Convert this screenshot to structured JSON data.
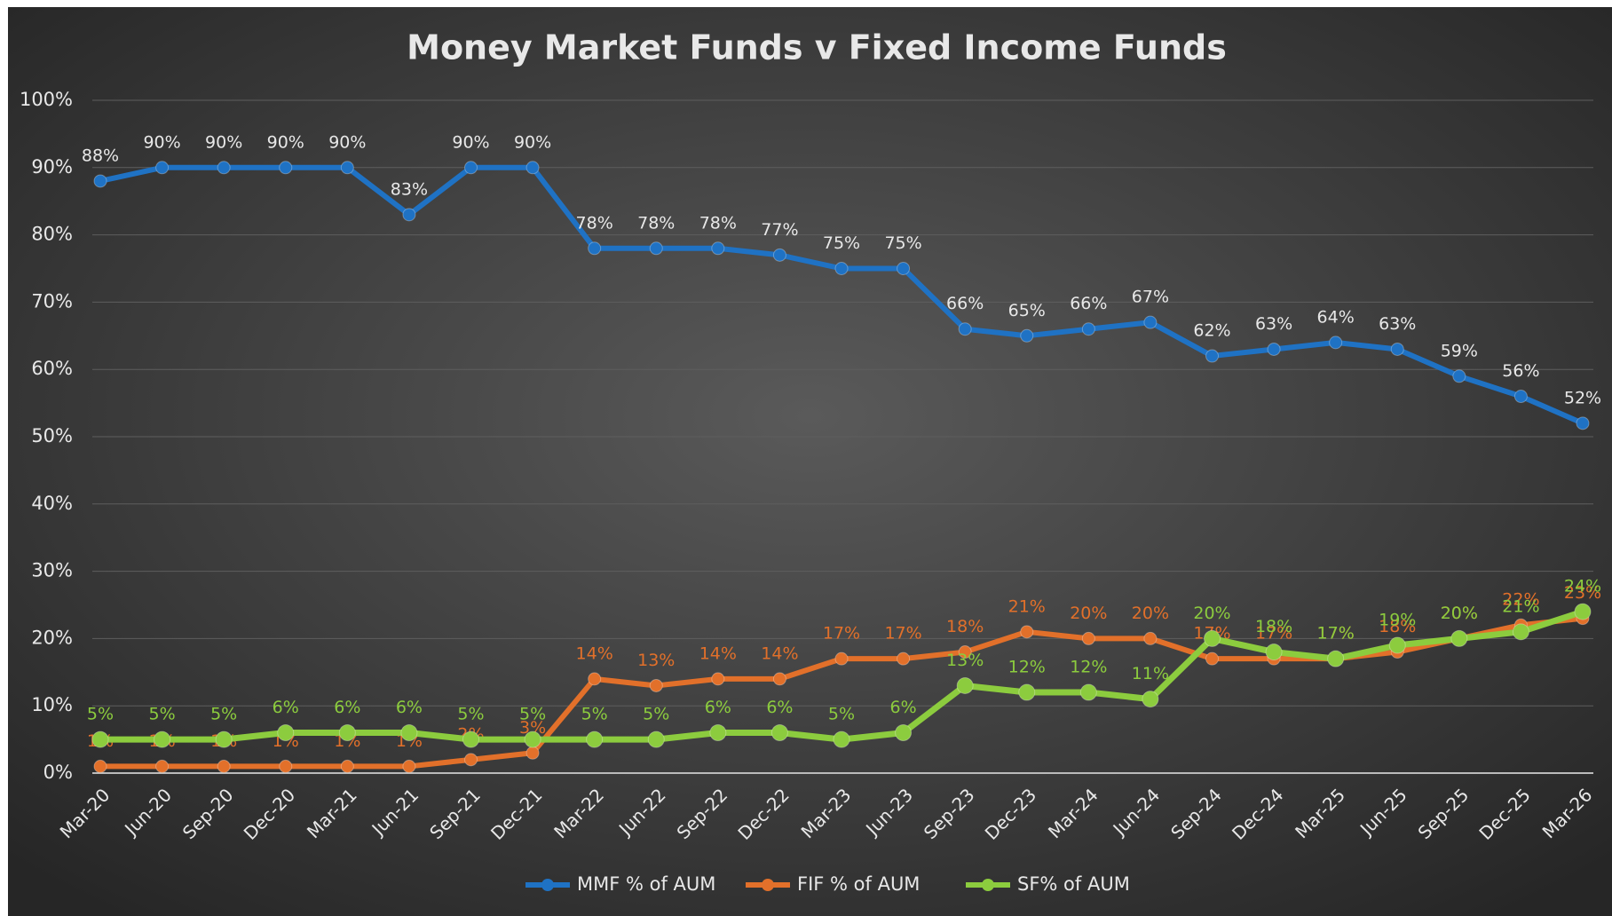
{
  "chart_data": {
    "type": "line",
    "title": "Money Market Funds v Fixed Income Funds",
    "categories": [
      "Mar-20",
      "Jun-20",
      "Sep-20",
      "Dec-20",
      "Mar-21",
      "Jun-21",
      "Sep-21",
      "Dec-21",
      "Mar-22",
      "Jun-22",
      "Sep-22",
      "Dec-22",
      "Mar-23",
      "Jun-23",
      "Sep-23",
      "Dec-23",
      "Mar-24",
      "Jun-24",
      "Sep-24",
      "Dec-24",
      "Mar-25",
      "Jun-25",
      "Sep-25",
      "Dec-25",
      "Mar-26"
    ],
    "series": [
      {
        "name": "MMF % of AUM",
        "color": "#1f72c4",
        "values": [
          88,
          90,
          90,
          90,
          90,
          83,
          90,
          90,
          78,
          78,
          78,
          77,
          75,
          75,
          66,
          65,
          66,
          67,
          62,
          63,
          64,
          63,
          59,
          56,
          52
        ],
        "value_labels": [
          "88%",
          "90%",
          "90%",
          "90%",
          "90%",
          "83%",
          "90%",
          "90%",
          "78%",
          "78%",
          "78%",
          "77%",
          "75%",
          "75%",
          "66%",
          "65%",
          "66%",
          "67%",
          "62%",
          "63%",
          "64%",
          "63%",
          "59%",
          "56%",
          "52%"
        ]
      },
      {
        "name": "FIF % of AUM",
        "color": "#e2702a",
        "values": [
          1,
          1,
          1,
          1,
          1,
          1,
          2,
          3,
          14,
          13,
          14,
          14,
          17,
          17,
          18,
          21,
          20,
          20,
          17,
          17,
          17,
          18,
          20,
          22,
          23
        ],
        "value_labels": [
          "1%",
          "1%",
          "1%",
          "1%",
          "1%",
          "1%",
          "2%",
          "3%",
          "14%",
          "13%",
          "14%",
          "14%",
          "17%",
          "17%",
          "18%",
          "21%",
          "20%",
          "20%",
          "17%",
          "17%",
          "17%",
          "18%",
          "20%",
          "22%",
          "23%"
        ]
      },
      {
        "name": "SF% of AUM",
        "color": "#8ccc3e",
        "values": [
          5,
          5,
          5,
          6,
          6,
          6,
          5,
          5,
          5,
          5,
          6,
          6,
          5,
          6,
          13,
          12,
          12,
          11,
          20,
          18,
          17,
          19,
          20,
          21,
          24
        ],
        "value_labels": [
          "5%",
          "5%",
          "5%",
          "6%",
          "6%",
          "6%",
          "5%",
          "5%",
          "5%",
          "5%",
          "6%",
          "6%",
          "5%",
          "6%",
          "13%",
          "12%",
          "12%",
          "11%",
          "20%",
          "18%",
          "17%",
          "19%",
          "20%",
          "21%",
          "24%"
        ]
      }
    ],
    "ylim": [
      0,
      100
    ],
    "yticks": [
      {
        "value": 0,
        "label": "0%"
      },
      {
        "value": 10,
        "label": "10%"
      },
      {
        "value": 20,
        "label": "20%"
      },
      {
        "value": 30,
        "label": "30%"
      },
      {
        "value": 40,
        "label": "40%"
      },
      {
        "value": 50,
        "label": "50%"
      },
      {
        "value": 60,
        "label": "60%"
      },
      {
        "value": 70,
        "label": "70%"
      },
      {
        "value": 80,
        "label": "80%"
      },
      {
        "value": 90,
        "label": "90%"
      },
      {
        "value": 100,
        "label": "100%"
      }
    ],
    "grid": true,
    "legend": "bottom"
  }
}
